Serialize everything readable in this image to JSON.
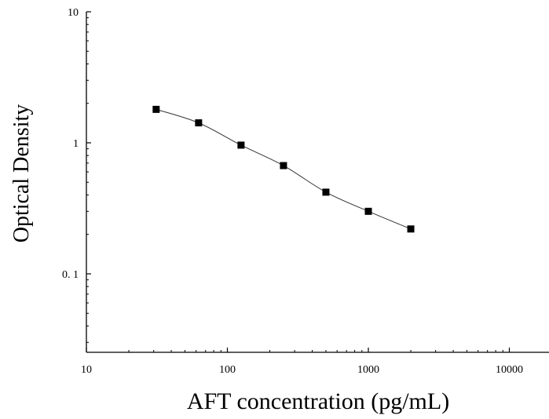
{
  "chart_data": {
    "type": "scatter",
    "title": "",
    "xlabel": "AFT concentration (pg/mL)",
    "ylabel": "Optical Density",
    "xscale": "log",
    "yscale": "log",
    "xlim": [
      10,
      15000
    ],
    "ylim": [
      0.025,
      10
    ],
    "xticks": [
      10,
      100,
      1000,
      10000
    ],
    "xtick_labels": [
      "10",
      "100",
      "1000",
      "10000"
    ],
    "yticks": [
      0.1,
      1,
      10
    ],
    "ytick_labels": [
      "0. 1",
      "1",
      "10"
    ],
    "grid": false,
    "legend": "none",
    "series": [
      {
        "marker": "square",
        "fit_line": true,
        "x": [
          31.25,
          62.5,
          125,
          250,
          500,
          1000,
          2000
        ],
        "y": [
          1.8,
          1.42,
          0.96,
          0.67,
          0.42,
          0.3,
          0.22
        ]
      }
    ],
    "colors": {
      "marker": "#000000",
      "line": "#333333",
      "axis": "#000000"
    }
  }
}
